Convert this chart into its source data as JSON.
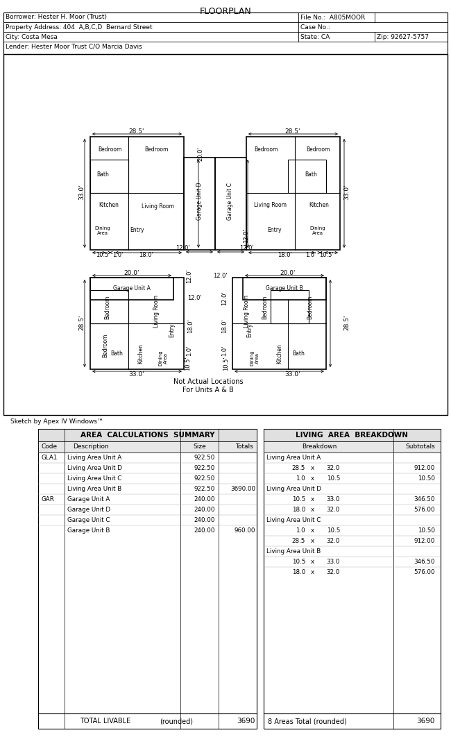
{
  "title": "FLOORPLAN",
  "header_rows": [
    [
      "Borrower: Hester H. Moor (Trust)",
      "",
      "File No.:  A805MOOR"
    ],
    [
      "Property Address: 404  A,B,C,D  Bernard Street",
      "",
      "Case No.:"
    ],
    [
      "City: Costa Mesa",
      "State: CA",
      "Zip: 92627-5757"
    ],
    [
      "Lender: Hester Moor Trust C/O Marcia Davis",
      "",
      ""
    ]
  ],
  "sketch_credit": "Sketch by Apex IV Windows™",
  "bg_color": "#ffffff",
  "line_color": "#000000",
  "calc_rows": [
    [
      "GLA1",
      "Living Area Unit A",
      "922.50",
      ""
    ],
    [
      "",
      "Living Area Unit D",
      "922.50",
      ""
    ],
    [
      "",
      "Living Area Unit C",
      "922.50",
      ""
    ],
    [
      "",
      "Living Area Unit B",
      "922.50",
      "3690.00"
    ],
    [
      "GAR",
      "Garage Unit A",
      "240.00",
      ""
    ],
    [
      "",
      "Garage Unit D",
      "240.00",
      ""
    ],
    [
      "",
      "Garage Unit C",
      "240.00",
      ""
    ],
    [
      "",
      "Garage Unit B",
      "240.00",
      "960.00"
    ]
  ],
  "breakdown_rows": [
    [
      "Living Area Unit A",
      "",
      "",
      ""
    ],
    [
      "",
      "28.5",
      "32.0",
      "912.00"
    ],
    [
      "",
      "1.0",
      "10.5",
      "10.50"
    ],
    [
      "Living Area Unit D",
      "",
      "",
      ""
    ],
    [
      "",
      "10.5",
      "33.0",
      "346.50"
    ],
    [
      "",
      "18.0",
      "32.0",
      "576.00"
    ],
    [
      "Living Area Unit C",
      "",
      "",
      ""
    ],
    [
      "",
      "1.0",
      "10.5",
      "10.50"
    ],
    [
      "",
      "28.5",
      "32.0",
      "912.00"
    ],
    [
      "Living Area Unit B",
      "",
      "",
      ""
    ],
    [
      "",
      "10.5",
      "33.0",
      "346.50"
    ],
    [
      "",
      "18.0",
      "32.0",
      "576.00"
    ]
  ]
}
